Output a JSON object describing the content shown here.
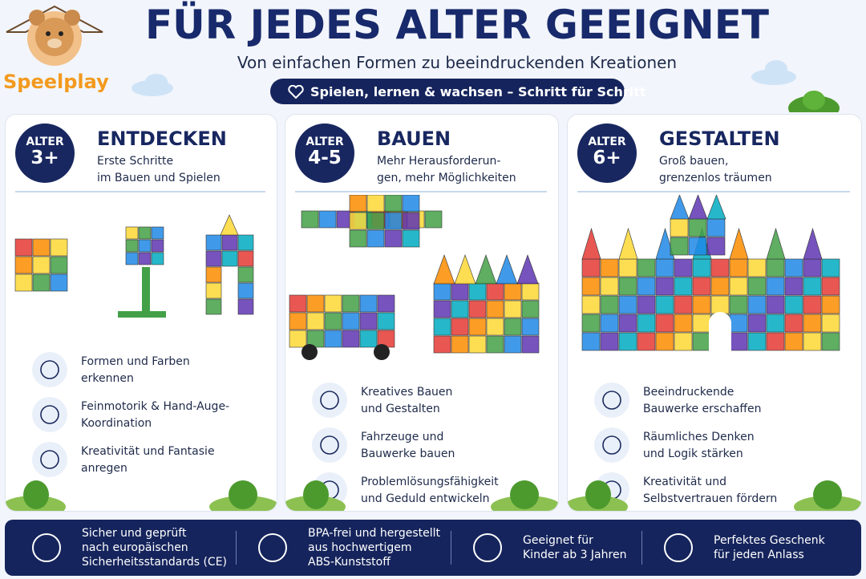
{
  "brand": "Speelplay",
  "header": {
    "title": "FÜR JEDES ALTER GEEIGNET",
    "subtitle": "Von einfachen Formen zu beeindruckenden Kreationen",
    "tagline": "Spielen, lernen & wachsen – Schritt für Schritt"
  },
  "cards": [
    {
      "badge_label": "ALTER",
      "badge_age": "3+",
      "heading": "ENTDECKEN",
      "description": [
        "Erste Schritte",
        "im Bauen und Spielen"
      ],
      "features": [
        [
          "Formen und Farben",
          "erkennen"
        ],
        [
          "Feinmotorik & Hand-Auge-",
          "Koordination"
        ],
        [
          "Kreativität und Fantasie",
          "anregen"
        ]
      ]
    },
    {
      "badge_label": "ALTER",
      "badge_age": "4-5",
      "heading": "BAUEN",
      "description": [
        "Mehr Herausforderun-",
        "gen, mehr Möglichkeiten"
      ],
      "features": [
        [
          "Kreatives Bauen",
          "und Gestalten"
        ],
        [
          "Fahrzeuge und",
          "Bauwerke bauen"
        ],
        [
          "Problemlösungsfähigkeit",
          "und Geduld entwickeln"
        ]
      ]
    },
    {
      "badge_label": "ALTER",
      "badge_age": "6+",
      "heading": "GESTALTEN",
      "description": [
        "Groß bauen,",
        "grenzenlos träumen"
      ],
      "features": [
        [
          "Beeindruckende",
          "Bauwerke erschaffen"
        ],
        [
          "Räumliches Denken",
          "und Logik stärken"
        ],
        [
          "Kreativität und",
          "Selbstvertrauen fördern"
        ]
      ]
    }
  ],
  "footer": [
    [
      "Sicher und geprüft",
      "nach europäischen",
      "Sicherheitsstandards (CE)"
    ],
    [
      "BPA-frei und hergestellt",
      "aus hochwertigem",
      "ABS-Kunststoff"
    ],
    [
      "Geeignet für",
      "Kinder ab 3 Jahren"
    ],
    [
      "Perfektes Geschenk",
      "für jeden Anlass"
    ]
  ]
}
